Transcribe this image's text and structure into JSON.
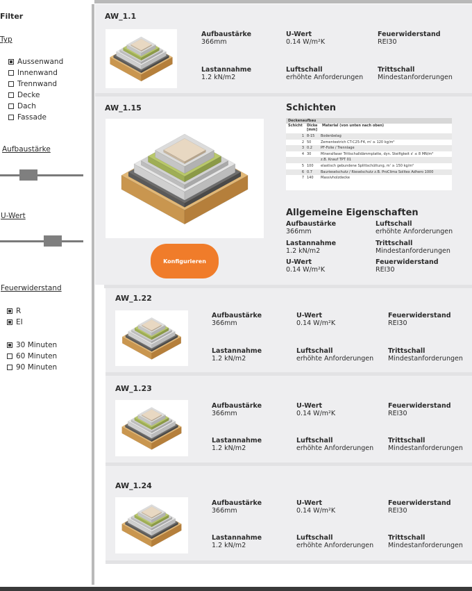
{
  "sidebar": {
    "title": "Filter",
    "typ_heading": "Typ",
    "typ_options": [
      {
        "label": "Aussenwand",
        "checked": true
      },
      {
        "label": "Innenwand",
        "checked": false
      },
      {
        "label": "Trennwand",
        "checked": false
      },
      {
        "label": "Decke",
        "checked": false
      },
      {
        "label": "Dach",
        "checked": false
      },
      {
        "label": "Fassade",
        "checked": false
      }
    ],
    "aufbau_heading": "Aufbaustärke",
    "uwert_heading": "U-Wert",
    "feuer_heading": "Feuerwiderstand",
    "feuer_options": [
      {
        "label": "R",
        "checked": true
      },
      {
        "label": "EI",
        "checked": true
      }
    ],
    "dauer_options": [
      {
        "label": "30 Minuten",
        "checked": true
      },
      {
        "label": "60 Minuten",
        "checked": false
      },
      {
        "label": "90 Minuten",
        "checked": false
      }
    ]
  },
  "labels": {
    "aufbau": "Aufbaustärke",
    "uwert": "U-Wert",
    "feuer": "Feuerwiderstand",
    "last": "Lastannahme",
    "luft": "Luftschall",
    "tritt": "Trittschall"
  },
  "values": {
    "aufbau": "366mm",
    "uwert": "0.14 W/m²K",
    "feuer": "REI30",
    "last": "1.2 kN/m2",
    "luft": "erhöhte Anforderungen",
    "tritt": "Mindestanforderungen"
  },
  "cards": [
    {
      "title": "AW_1.1"
    },
    {
      "title": "AW_1.15"
    },
    {
      "title": "AW_1.22"
    },
    {
      "title": "AW_1.23"
    },
    {
      "title": "AW_1.24"
    }
  ],
  "detail": {
    "schichten_title": "Schichten",
    "eigenschaften_title": "Allgemeine Eigenschaften",
    "button_label": "Konfigurieren",
    "table": {
      "caption": "Deckenaufbau",
      "col_schicht": "Schicht",
      "col_dicke": "Dicke",
      "col_dicke_unit": "[mm]",
      "col_material": "Material (von unten nach oben)",
      "rows": [
        {
          "n": "1",
          "d": "8-15",
          "m": "Bodenbelag"
        },
        {
          "n": "2",
          "d": "50",
          "m": "Zementestrich CT-C25-F4, m' ≥ 120 kg/m²"
        },
        {
          "n": "3",
          "d": "0.2",
          "m": "PF-Folie / Trennlage"
        },
        {
          "n": "4",
          "d": "30",
          "m": "Mineralfaser Trittschalldämmplatte, dyn. Steifigkeit s' ≤ 8 MN/m³"
        },
        {
          "n": "",
          "d": "",
          "m": "z.B. Knauf TPT 01"
        },
        {
          "n": "5",
          "d": "100",
          "m": "elastisch gebundene Splittschüttung, m' ≥ 150 kg/m²"
        },
        {
          "n": "6",
          "d": "0.7",
          "m": "Baurieselschutz / Rieselschutz z.B. ProClima Solitex Adhero 1000"
        },
        {
          "n": "7",
          "d": "140",
          "m": "Massivholzdecke"
        }
      ]
    }
  },
  "colors": {
    "accent": "#f07c2a",
    "card_bg": "#eeeef0",
    "divider": "#b9b9b9"
  }
}
